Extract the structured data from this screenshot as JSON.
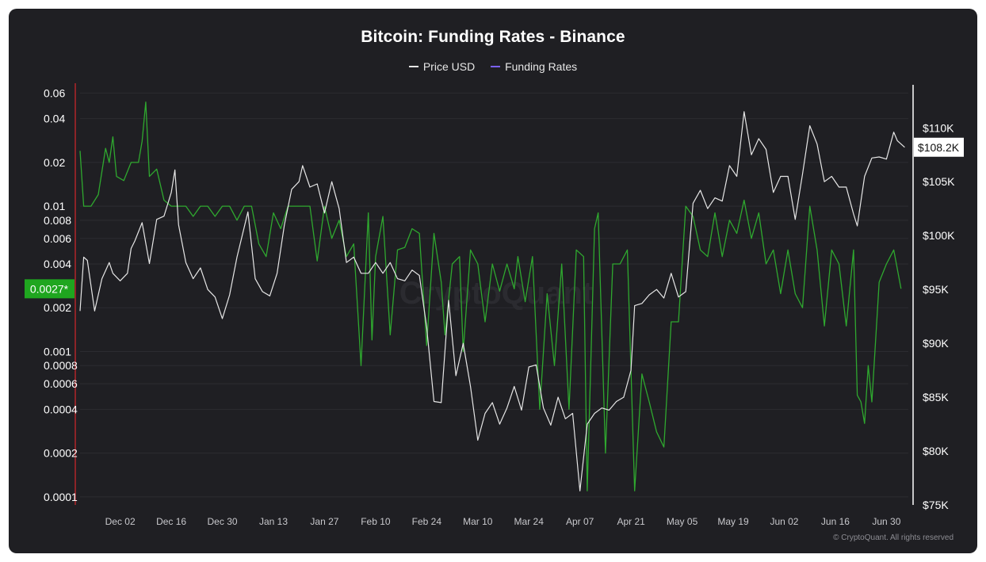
{
  "title": "Bitcoin: Funding Rates - Binance",
  "credit": "© CryptoQuant. All rights reserved",
  "watermark": "CryptoQuant",
  "legend": [
    {
      "label": "Price USD",
      "color": "#e6e6e6"
    },
    {
      "label": "Funding Rates",
      "color": "#7b61ff"
    }
  ],
  "colors": {
    "background": "#1f1f23",
    "price_line": "#e6e6e6",
    "funding_line": "#2fa82f",
    "left_axis_line": "#b0262a",
    "right_axis_line": "#ffffff",
    "grid": "#2c2c31"
  },
  "chart_data": {
    "type": "line",
    "title": "Bitcoin: Funding Rates - Binance",
    "x_ticks": [
      "Dec 02",
      "Dec 16",
      "Dec 30",
      "Jan 13",
      "Jan 27",
      "Feb 10",
      "Feb 24",
      "Mar 10",
      "Mar 24",
      "Apr 07",
      "Apr 21",
      "May 05",
      "May 19",
      "Jun 02",
      "Jun 16",
      "Jun 30"
    ],
    "x_range": [
      "2024-11-21",
      "2025-07-06"
    ],
    "left_axis": {
      "scale": "log",
      "ticks": [
        "0.06",
        "0.04",
        "0.02",
        "0.01",
        "0.008",
        "0.006",
        "0.004",
        "0.002",
        "0.001",
        "0.0008",
        "0.0006",
        "0.0004",
        "0.0002",
        "0.0001"
      ],
      "range": [
        8.8e-05,
        0.065
      ]
    },
    "right_axis": {
      "scale": "linear",
      "ticks": [
        "$110K",
        "$105K",
        "$100K",
        "$95K",
        "$90K",
        "$85K",
        "$80K",
        "$75K"
      ],
      "range": [
        75000,
        113700
      ]
    },
    "current_funding_label": "0.0027*",
    "current_price_label": "$108.2K",
    "grid": true,
    "legend_position": "top-center",
    "series": [
      {
        "name": "Price USD",
        "axis": "right",
        "points": [
          [
            "2024-11-21",
            93000
          ],
          [
            "2024-11-22",
            98000
          ],
          [
            "2024-11-23",
            97700
          ],
          [
            "2024-11-25",
            93000
          ],
          [
            "2024-11-27",
            96000
          ],
          [
            "2024-11-29",
            97500
          ],
          [
            "2024-11-30",
            96500
          ],
          [
            "2024-12-02",
            95800
          ],
          [
            "2024-12-04",
            96500
          ],
          [
            "2024-12-05",
            98800
          ],
          [
            "2024-12-06",
            99500
          ],
          [
            "2024-12-08",
            101200
          ],
          [
            "2024-12-10",
            97400
          ],
          [
            "2024-12-12",
            101500
          ],
          [
            "2024-12-14",
            101800
          ],
          [
            "2024-12-16",
            104000
          ],
          [
            "2024-12-17",
            106100
          ],
          [
            "2024-12-18",
            101000
          ],
          [
            "2024-12-20",
            97500
          ],
          [
            "2024-12-22",
            96000
          ],
          [
            "2024-12-24",
            97000
          ],
          [
            "2024-12-26",
            95000
          ],
          [
            "2024-12-28",
            94300
          ],
          [
            "2024-12-30",
            92300
          ],
          [
            "2025-01-01",
            94500
          ],
          [
            "2025-01-03",
            98000
          ],
          [
            "2025-01-06",
            102200
          ],
          [
            "2025-01-08",
            96000
          ],
          [
            "2025-01-10",
            94800
          ],
          [
            "2025-01-12",
            94400
          ],
          [
            "2025-01-14",
            96500
          ],
          [
            "2025-01-16",
            101000
          ],
          [
            "2025-01-18",
            104300
          ],
          [
            "2025-01-20",
            105000
          ],
          [
            "2025-01-21",
            106500
          ],
          [
            "2025-01-23",
            104500
          ],
          [
            "2025-01-25",
            104800
          ],
          [
            "2025-01-27",
            102100
          ],
          [
            "2025-01-29",
            105000
          ],
          [
            "2025-01-31",
            102500
          ],
          [
            "2025-02-02",
            97500
          ],
          [
            "2025-02-04",
            98000
          ],
          [
            "2025-02-06",
            96500
          ],
          [
            "2025-02-08",
            96500
          ],
          [
            "2025-02-10",
            97500
          ],
          [
            "2025-02-12",
            96500
          ],
          [
            "2025-02-14",
            97500
          ],
          [
            "2025-02-16",
            96000
          ],
          [
            "2025-02-18",
            95800
          ],
          [
            "2025-02-20",
            96800
          ],
          [
            "2025-02-22",
            96300
          ],
          [
            "2025-02-24",
            91500
          ],
          [
            "2025-02-26",
            84600
          ],
          [
            "2025-02-28",
            84500
          ],
          [
            "2025-03-02",
            94000
          ],
          [
            "2025-03-04",
            87000
          ],
          [
            "2025-03-06",
            90000
          ],
          [
            "2025-03-08",
            86000
          ],
          [
            "2025-03-10",
            81000
          ],
          [
            "2025-03-12",
            83500
          ],
          [
            "2025-03-14",
            84500
          ],
          [
            "2025-03-16",
            82500
          ],
          [
            "2025-03-18",
            84000
          ],
          [
            "2025-03-20",
            86000
          ],
          [
            "2025-03-22",
            83800
          ],
          [
            "2025-03-24",
            87800
          ],
          [
            "2025-03-26",
            88000
          ],
          [
            "2025-03-28",
            84000
          ],
          [
            "2025-03-30",
            82400
          ],
          [
            "2025-04-01",
            85000
          ],
          [
            "2025-04-03",
            83000
          ],
          [
            "2025-04-05",
            83500
          ],
          [
            "2025-04-07",
            76300
          ],
          [
            "2025-04-09",
            82500
          ],
          [
            "2025-04-11",
            83500
          ],
          [
            "2025-04-13",
            84000
          ],
          [
            "2025-04-15",
            83800
          ],
          [
            "2025-04-17",
            84600
          ],
          [
            "2025-04-19",
            85000
          ],
          [
            "2025-04-21",
            87500
          ],
          [
            "2025-04-22",
            93500
          ],
          [
            "2025-04-24",
            93700
          ],
          [
            "2025-04-26",
            94500
          ],
          [
            "2025-04-28",
            95000
          ],
          [
            "2025-04-30",
            94200
          ],
          [
            "2025-05-02",
            96500
          ],
          [
            "2025-05-04",
            94300
          ],
          [
            "2025-05-06",
            94800
          ],
          [
            "2025-05-08",
            103000
          ],
          [
            "2025-05-10",
            104200
          ],
          [
            "2025-05-12",
            102500
          ],
          [
            "2025-05-14",
            103500
          ],
          [
            "2025-05-16",
            103200
          ],
          [
            "2025-05-18",
            106500
          ],
          [
            "2025-05-20",
            105500
          ],
          [
            "2025-05-22",
            111500
          ],
          [
            "2025-05-24",
            107500
          ],
          [
            "2025-05-26",
            109000
          ],
          [
            "2025-05-28",
            108000
          ],
          [
            "2025-05-30",
            104000
          ],
          [
            "2025-06-01",
            105500
          ],
          [
            "2025-06-03",
            105500
          ],
          [
            "2025-06-05",
            101500
          ],
          [
            "2025-06-07",
            105700
          ],
          [
            "2025-06-09",
            110200
          ],
          [
            "2025-06-11",
            108500
          ],
          [
            "2025-06-13",
            105000
          ],
          [
            "2025-06-15",
            105500
          ],
          [
            "2025-06-17",
            104500
          ],
          [
            "2025-06-19",
            104500
          ],
          [
            "2025-06-21",
            102000
          ],
          [
            "2025-06-22",
            100900
          ],
          [
            "2025-06-24",
            105500
          ],
          [
            "2025-06-26",
            107200
          ],
          [
            "2025-06-28",
            107300
          ],
          [
            "2025-06-30",
            107100
          ],
          [
            "2025-07-02",
            109600
          ],
          [
            "2025-07-03",
            108800
          ],
          [
            "2025-07-05",
            108200
          ]
        ]
      },
      {
        "name": "Funding Rates",
        "axis": "left",
        "points": [
          [
            "2024-11-21",
            0.024
          ],
          [
            "2024-11-22",
            0.01
          ],
          [
            "2024-11-24",
            0.01
          ],
          [
            "2024-11-26",
            0.012
          ],
          [
            "2024-11-28",
            0.025
          ],
          [
            "2024-11-29",
            0.02
          ],
          [
            "2024-11-30",
            0.03
          ],
          [
            "2024-12-01",
            0.016
          ],
          [
            "2024-12-03",
            0.015
          ],
          [
            "2024-12-05",
            0.02
          ],
          [
            "2024-12-07",
            0.02
          ],
          [
            "2024-12-08",
            0.028
          ],
          [
            "2024-12-09",
            0.052
          ],
          [
            "2024-12-10",
            0.016
          ],
          [
            "2024-12-12",
            0.018
          ],
          [
            "2024-12-14",
            0.011
          ],
          [
            "2024-12-16",
            0.01
          ],
          [
            "2024-12-18",
            0.01
          ],
          [
            "2024-12-20",
            0.01
          ],
          [
            "2024-12-22",
            0.0085
          ],
          [
            "2024-12-24",
            0.01
          ],
          [
            "2024-12-26",
            0.01
          ],
          [
            "2024-12-28",
            0.0085
          ],
          [
            "2024-12-30",
            0.01
          ],
          [
            "2025-01-01",
            0.01
          ],
          [
            "2025-01-03",
            0.008
          ],
          [
            "2025-01-05",
            0.01
          ],
          [
            "2025-01-07",
            0.01
          ],
          [
            "2025-01-09",
            0.0055
          ],
          [
            "2025-01-11",
            0.0045
          ],
          [
            "2025-01-13",
            0.009
          ],
          [
            "2025-01-15",
            0.007
          ],
          [
            "2025-01-17",
            0.01
          ],
          [
            "2025-01-19",
            0.01
          ],
          [
            "2025-01-21",
            0.01
          ],
          [
            "2025-01-23",
            0.01
          ],
          [
            "2025-01-25",
            0.0042
          ],
          [
            "2025-01-27",
            0.01
          ],
          [
            "2025-01-29",
            0.006
          ],
          [
            "2025-01-31",
            0.008
          ],
          [
            "2025-02-02",
            0.0045
          ],
          [
            "2025-02-04",
            0.0055
          ],
          [
            "2025-02-06",
            0.0008
          ],
          [
            "2025-02-08",
            0.009
          ],
          [
            "2025-02-09",
            0.0012
          ],
          [
            "2025-02-10",
            0.0045
          ],
          [
            "2025-02-12",
            0.0085
          ],
          [
            "2025-02-14",
            0.0013
          ],
          [
            "2025-02-16",
            0.005
          ],
          [
            "2025-02-18",
            0.0052
          ],
          [
            "2025-02-20",
            0.007
          ],
          [
            "2025-02-22",
            0.0065
          ],
          [
            "2025-02-24",
            0.0011
          ],
          [
            "2025-02-26",
            0.0065
          ],
          [
            "2025-02-28",
            0.003
          ],
          [
            "2025-03-01",
            0.0013
          ],
          [
            "2025-03-03",
            0.004
          ],
          [
            "2025-03-05",
            0.0045
          ],
          [
            "2025-03-06",
            0.001
          ],
          [
            "2025-03-08",
            0.005
          ],
          [
            "2025-03-10",
            0.004
          ],
          [
            "2025-03-12",
            0.0016
          ],
          [
            "2025-03-14",
            0.004
          ],
          [
            "2025-03-16",
            0.0026
          ],
          [
            "2025-03-18",
            0.004
          ],
          [
            "2025-03-20",
            0.0027
          ],
          [
            "2025-03-21",
            0.0045
          ],
          [
            "2025-03-23",
            0.0022
          ],
          [
            "2025-03-25",
            0.0045
          ],
          [
            "2025-03-27",
            0.0004
          ],
          [
            "2025-03-29",
            0.0025
          ],
          [
            "2025-03-31",
            0.0008
          ],
          [
            "2025-04-02",
            0.004
          ],
          [
            "2025-04-04",
            0.0004
          ],
          [
            "2025-04-06",
            0.005
          ],
          [
            "2025-04-08",
            0.0045
          ],
          [
            "2025-04-09",
            0.00011
          ],
          [
            "2025-04-11",
            0.007
          ],
          [
            "2025-04-12",
            0.009
          ],
          [
            "2025-04-14",
            0.0002
          ],
          [
            "2025-04-16",
            0.004
          ],
          [
            "2025-04-18",
            0.004
          ],
          [
            "2025-04-20",
            0.005
          ],
          [
            "2025-04-22",
            0.00011
          ],
          [
            "2025-04-24",
            0.0007
          ],
          [
            "2025-04-26",
            0.00045
          ],
          [
            "2025-04-28",
            0.00028
          ],
          [
            "2025-04-30",
            0.00022
          ],
          [
            "2025-05-02",
            0.0016
          ],
          [
            "2025-05-04",
            0.0016
          ],
          [
            "2025-05-06",
            0.01
          ],
          [
            "2025-05-08",
            0.0085
          ],
          [
            "2025-05-10",
            0.005
          ],
          [
            "2025-05-12",
            0.0045
          ],
          [
            "2025-05-14",
            0.009
          ],
          [
            "2025-05-16",
            0.0045
          ],
          [
            "2025-05-18",
            0.008
          ],
          [
            "2025-05-20",
            0.0065
          ],
          [
            "2025-05-22",
            0.011
          ],
          [
            "2025-05-24",
            0.006
          ],
          [
            "2025-05-26",
            0.009
          ],
          [
            "2025-05-28",
            0.004
          ],
          [
            "2025-05-30",
            0.005
          ],
          [
            "2025-06-01",
            0.0025
          ],
          [
            "2025-06-03",
            0.005
          ],
          [
            "2025-06-05",
            0.0025
          ],
          [
            "2025-06-07",
            0.002
          ],
          [
            "2025-06-09",
            0.01
          ],
          [
            "2025-06-11",
            0.005
          ],
          [
            "2025-06-13",
            0.0015
          ],
          [
            "2025-06-15",
            0.005
          ],
          [
            "2025-06-17",
            0.004
          ],
          [
            "2025-06-19",
            0.0015
          ],
          [
            "2025-06-21",
            0.005
          ],
          [
            "2025-06-22",
            0.0005
          ],
          [
            "2025-06-23",
            0.00045
          ],
          [
            "2025-06-24",
            0.00032
          ],
          [
            "2025-06-25",
            0.0008
          ],
          [
            "2025-06-26",
            0.00045
          ],
          [
            "2025-06-28",
            0.003
          ],
          [
            "2025-06-30",
            0.004
          ],
          [
            "2025-07-02",
            0.005
          ],
          [
            "2025-07-04",
            0.0027
          ]
        ]
      }
    ]
  }
}
